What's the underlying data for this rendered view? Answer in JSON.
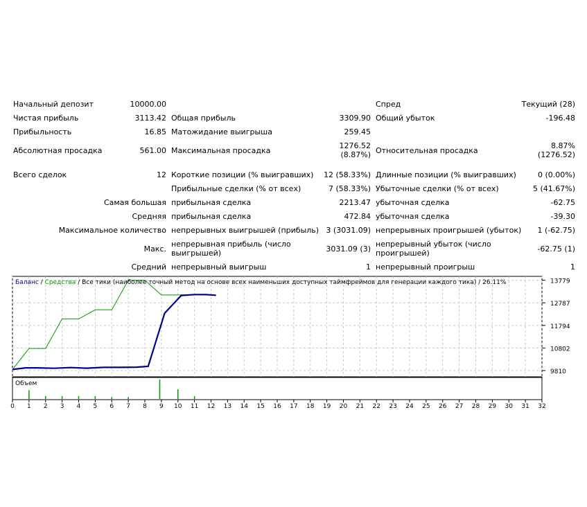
{
  "report": {
    "initial_deposit": {
      "label": "Начальный депозит",
      "value": "10000.00"
    },
    "spread": {
      "label": "Спред",
      "value": "Текущий (28)"
    },
    "net_profit": {
      "label": "Чистая прибыль",
      "value": "3113.42"
    },
    "gross_profit": {
      "label": "Общая прибыль",
      "value": "3309.90"
    },
    "gross_loss": {
      "label": "Общий убыток",
      "value": "-196.48"
    },
    "profit_factor": {
      "label": "Прибыльность",
      "value": "16.85"
    },
    "expected_payoff": {
      "label": "Матожидание выигрыша",
      "value": "259.45"
    },
    "absolute_drawdown": {
      "label": "Абсолютная просадка",
      "value": "561.00"
    },
    "maximal_drawdown": {
      "label": "Максимальная просадка",
      "value_line1": "1276.52",
      "value_line2": "(8.87%)"
    },
    "relative_drawdown": {
      "label": "Относительная просадка",
      "value_line1": "8.87%",
      "value_line2": "(1276.52)"
    },
    "total_trades": {
      "label": "Всего сделок",
      "value": "12"
    },
    "short_positions": {
      "label": "Короткие позиции (% выигравших)",
      "value": "12 (58.33%)"
    },
    "long_positions": {
      "label": "Длинные позиции (% выигравших)",
      "value": "0 (0.00%)"
    },
    "profit_trades": {
      "label": "Прибыльные сделки (% от всех)",
      "value": "7 (58.33%)"
    },
    "loss_trades": {
      "label": "Убыточные сделки (% от всех)",
      "value": "5 (41.67%)"
    },
    "largest": {
      "label": "Самая большая",
      "profit_label": "прибыльная сделка",
      "profit_value": "2213.47",
      "loss_label": "убыточная сделка",
      "loss_value": "-62.75"
    },
    "average": {
      "label": "Средняя",
      "profit_label": "прибыльная сделка",
      "profit_value": "472.84",
      "loss_label": "убыточная сделка",
      "loss_value": "-39.30"
    },
    "max_count": {
      "label": "Максимальное количество",
      "wins_label": "непрерывных выигрышей (прибыль)",
      "wins_value": "3 (3031.09)",
      "losses_label": "непрерывных проигрышей (убыток)",
      "losses_value": "1 (-62.75)"
    },
    "max_amount": {
      "label": "Макс.",
      "profit_label": "непрерывная прибыль (число выигрышей)",
      "profit_value": "3031.09 (3)",
      "loss_label": "непрерывный убыток (число проигрышей)",
      "loss_value": "-62.75 (1)"
    },
    "avg_consecutive": {
      "label": "Средний",
      "wins_label": "непрерывный выигрыш",
      "wins_value": "1",
      "losses_label": "непрерывный проигрыш",
      "losses_value": "1"
    }
  },
  "chart_data": {
    "type": "line",
    "legend_balance": "Баланс",
    "legend_sep": " / ",
    "legend_equity": "Средства",
    "legend_rest": " / Все тики (наиболее точный метод на основе всех наименьших доступных таймфреймов для генерации каждого тика) / 26.11%",
    "volume_label": "Объем",
    "ylim": [
      9810,
      13950
    ],
    "yticks": [
      13779,
      12787,
      11794,
      10802,
      9810
    ],
    "xlim": [
      0,
      32
    ],
    "xticks": [
      "0",
      "1",
      "2",
      "3",
      "4",
      "5",
      "6",
      "7",
      "8",
      "9",
      "10",
      "11",
      "12",
      "13",
      "14",
      "15",
      "16",
      "17",
      "18",
      "19",
      "20",
      "21",
      "22",
      "23",
      "24",
      "25",
      "26",
      "27",
      "28",
      "29",
      "30",
      "31",
      "32"
    ],
    "series": [
      {
        "name": "Баланс",
        "color": "#00008b",
        "x": [
          0,
          0.8,
          1.5,
          2.5,
          3.5,
          4.5,
          5.5,
          6.5,
          7.5,
          8.2,
          9.2,
          10.2,
          11,
          11.7,
          12.3
        ],
        "y": [
          9860,
          9930,
          9930,
          9910,
          9940,
          9915,
          9950,
          9950,
          9960,
          9995,
          12330,
          13110,
          13150,
          13150,
          13120
        ]
      },
      {
        "name": "Средства",
        "color": "#009900",
        "x": [
          0,
          1,
          2,
          3,
          4,
          5,
          6,
          7,
          8,
          9,
          10,
          11,
          12
        ],
        "y": [
          9860,
          10780,
          10780,
          12080,
          12080,
          12480,
          12480,
          13780,
          13780,
          13130,
          13130,
          13150,
          13120
        ]
      }
    ],
    "volume": [
      {
        "x": 1,
        "h": 0.45
      },
      {
        "x": 2,
        "h": 0.15
      },
      {
        "x": 3,
        "h": 0.15
      },
      {
        "x": 4,
        "h": 0.15
      },
      {
        "x": 5,
        "h": 0.15
      },
      {
        "x": 6,
        "h": 0.1
      },
      {
        "x": 7,
        "h": 0.1
      },
      {
        "x": 8.9,
        "h": 1.0
      },
      {
        "x": 10,
        "h": 0.5
      },
      {
        "x": 11,
        "h": 0.15
      }
    ],
    "colors": {
      "grid": "#c8c8c8",
      "axis": "#000000",
      "volume": "#009900"
    }
  }
}
